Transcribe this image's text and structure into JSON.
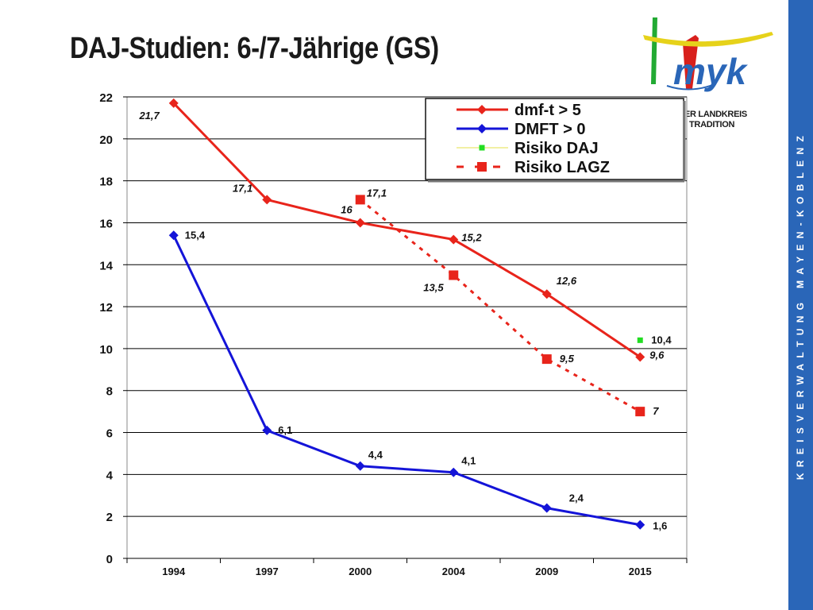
{
  "slide": {
    "title": "DAJ-Studien: 6-/7-Jährige (GS)",
    "side_band_text": "KREISVERWALTUNG MAYEN-KOBLENZ",
    "logo": {
      "wordmark": "myk",
      "line1": "ER LANDKREIS",
      "line2": "TRADITION"
    }
  },
  "chart_data": {
    "type": "line",
    "title": "",
    "xlabel": "",
    "ylabel": "",
    "categories": [
      "1994",
      "1997",
      "2000",
      "2004",
      "2009",
      "2015"
    ],
    "ylim": [
      0,
      22
    ],
    "yticks": [
      "0",
      "2",
      "4",
      "6",
      "8",
      "10",
      "12",
      "14",
      "16",
      "18",
      "20",
      "22"
    ],
    "grid": true,
    "legend_position": "top-right",
    "series": [
      {
        "name": "dmf-t > 5",
        "color": "#e8241b",
        "marker": "diamond",
        "line": "solid",
        "values": [
          21.7,
          17.1,
          16,
          15.2,
          12.6,
          9.6
        ],
        "labels": [
          "21,7",
          "17,1",
          "16",
          "15,2",
          "12,6",
          "9,6"
        ]
      },
      {
        "name": "DMFT > 0",
        "color": "#1414d8",
        "marker": "diamond",
        "line": "solid",
        "values": [
          15.4,
          6.1,
          4.4,
          4.1,
          2.4,
          1.6
        ],
        "labels": [
          "15,4",
          "6,1",
          "4,4",
          "4,1",
          "2,4",
          "1,6"
        ]
      },
      {
        "name": "Risiko DAJ",
        "color": "#22dd22",
        "marker": "square",
        "line": "none",
        "values": [
          null,
          null,
          null,
          null,
          null,
          10.4
        ],
        "labels": [
          null,
          null,
          null,
          null,
          null,
          "10,4"
        ]
      },
      {
        "name": "Risiko LAGZ",
        "color": "#e8241b",
        "marker": "square",
        "line": "dashed",
        "values": [
          null,
          null,
          17.1,
          13.5,
          9.5,
          7
        ],
        "labels": [
          null,
          null,
          "17,1",
          "13,5",
          "9,5",
          "7"
        ]
      }
    ]
  }
}
